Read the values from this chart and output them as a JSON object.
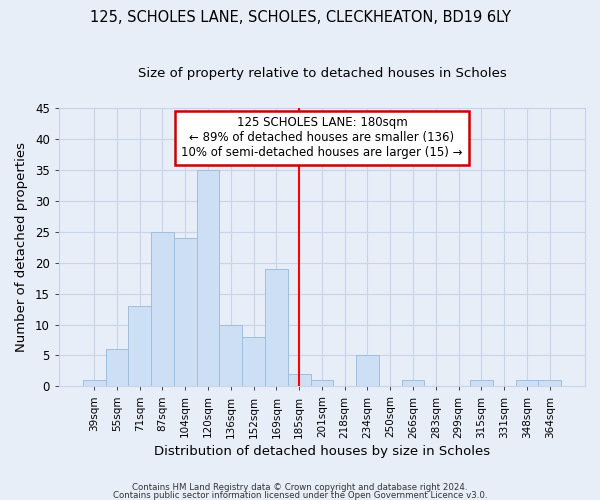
{
  "title1": "125, SCHOLES LANE, SCHOLES, CLECKHEATON, BD19 6LY",
  "title2": "Size of property relative to detached houses in Scholes",
  "xlabel": "Distribution of detached houses by size in Scholes",
  "ylabel": "Number of detached properties",
  "bar_labels": [
    "39sqm",
    "55sqm",
    "71sqm",
    "87sqm",
    "104sqm",
    "120sqm",
    "136sqm",
    "152sqm",
    "169sqm",
    "185sqm",
    "201sqm",
    "218sqm",
    "234sqm",
    "250sqm",
    "266sqm",
    "283sqm",
    "299sqm",
    "315sqm",
    "331sqm",
    "348sqm",
    "364sqm"
  ],
  "bar_values": [
    1,
    6,
    13,
    25,
    24,
    35,
    10,
    8,
    19,
    2,
    1,
    0,
    5,
    0,
    1,
    0,
    0,
    1,
    0,
    1,
    1
  ],
  "bar_color": "#ccdff5",
  "bar_edge_color": "#a0bedd",
  "vline_color": "red",
  "vline_index": 9,
  "annotation_title": "125 SCHOLES LANE: 180sqm",
  "annotation_line1": "← 89% of detached houses are smaller (136)",
  "annotation_line2": "10% of semi-detached houses are larger (15) →",
  "annotation_box_color": "white",
  "annotation_box_edge": "#cc0000",
  "footer1": "Contains HM Land Registry data © Crown copyright and database right 2024.",
  "footer2": "Contains public sector information licensed under the Open Government Licence v3.0.",
  "ylim": [
    0,
    45
  ],
  "yticks": [
    0,
    5,
    10,
    15,
    20,
    25,
    30,
    35,
    40,
    45
  ],
  "grid_color": "#c8d4e8",
  "background_color": "#e8eef8",
  "title1_fontsize": 10.5,
  "title2_fontsize": 9.5
}
